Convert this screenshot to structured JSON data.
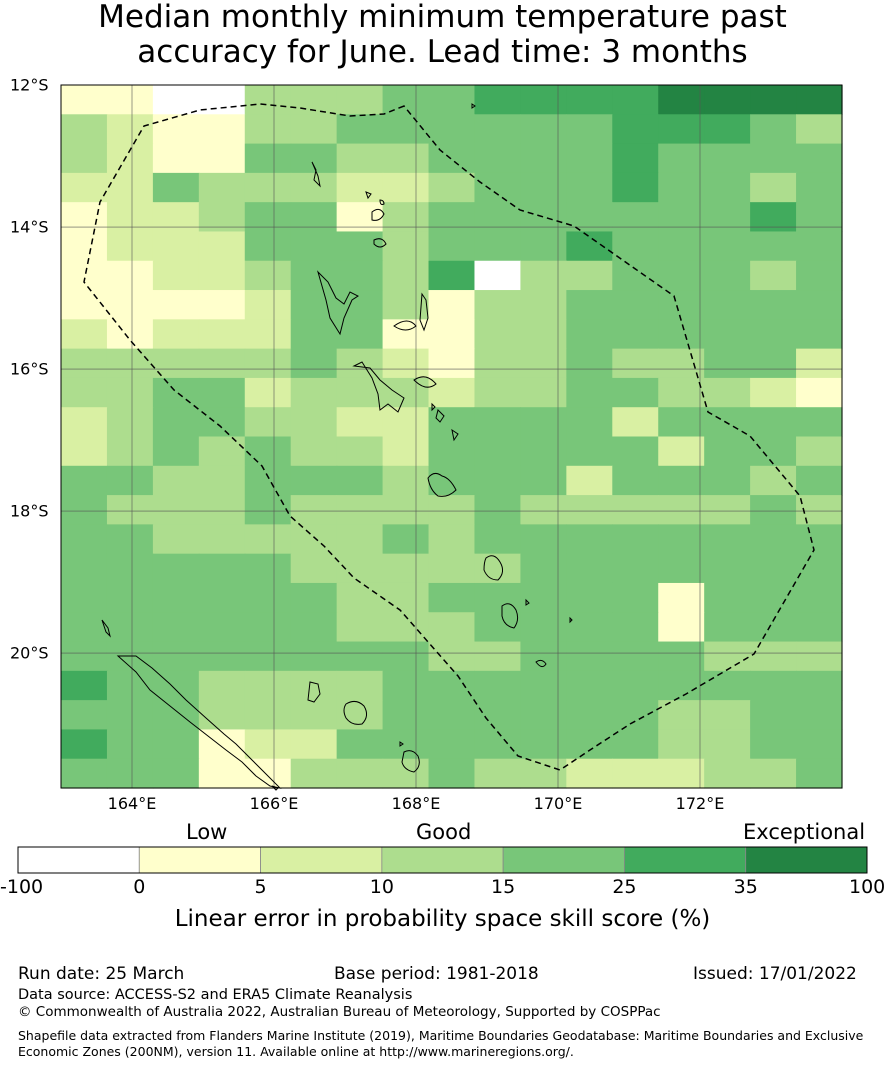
{
  "title": {
    "line1": "Median monthly minimum temperature past",
    "line2": "accuracy for June. Lead time: 3 months"
  },
  "map": {
    "lon_range": [
      163.0,
      174.0
    ],
    "lat_range": [
      -21.9,
      -12.0
    ],
    "lon_ticks": [
      "164°E",
      "166°E",
      "168°E",
      "170°E",
      "172°E"
    ],
    "lat_ticks": [
      "12°S",
      "14°S",
      "16°S",
      "18°S",
      "20°S"
    ],
    "grid": true,
    "boundary": "dashed EEZ boundary",
    "category_colors": {
      "0": "#ffffff",
      "1": "#ffffcc",
      "2": "#d9f0a3",
      "3": "#addd8e",
      "4": "#78c679",
      "5": "#41ab5d",
      "6": "#238443"
    },
    "cell_rows": [
      "11003334455556666",
      "32113344444455543",
      "32114433444454444",
      "22433322344454434",
      "12234413444444454",
      "12224443444544444",
      "11223443503344434",
      "11112443133444444",
      "21222441133444444",
      "33333432133433442",
      "33442333233443321",
      "23443322444424444",
      "23434332444442443",
      "44334443444244434",
      "43334333343333343",
      "44333334344444444",
      "44444333334444444",
      "44444433444441444",
      "44444433344441444",
      "44444444334444333",
      "54433334444444444",
      "44433334444443344",
      "54412244444443344",
      "44411333433222334"
    ]
  },
  "colorbar": {
    "category_labels": [
      "Low",
      "Good",
      "Exceptional"
    ],
    "ticks": [
      "-100",
      "0",
      "5",
      "10",
      "15",
      "25",
      "35",
      "100"
    ],
    "colors": [
      "#ffffff",
      "#ffffcc",
      "#d9f0a3",
      "#addd8e",
      "#78c679",
      "#41ab5d",
      "#238443"
    ],
    "title": "Linear error in probability space skill score (%)"
  },
  "footer": {
    "run_date": "Run date: 25 March",
    "base_period": "Base period: 1981-2018",
    "issued": "Issued: 17/01/2022",
    "data_source": "Data source: ACCESS-S2 and ERA5 Climate Reanalysis",
    "copyright": "© Commonwealth of Australia 2022, Australian Bureau of Meteorology, Supported by COSPPac",
    "shapefile_line1": "Shapefile data extracted from Flanders Marine Institute (2019), Maritime Boundaries Geodatabase: Maritime Boundaries and Exclusive",
    "shapefile_line2": "Economic Zones (200NM), version 11. Available online at http://www.marineregions.org/."
  }
}
